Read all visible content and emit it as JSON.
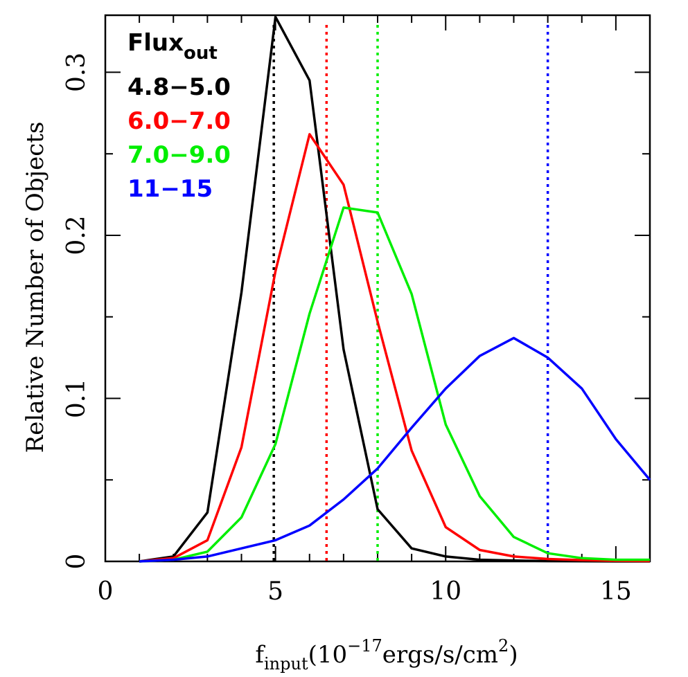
{
  "chart_data": {
    "type": "line",
    "xlabel": {
      "main": "f",
      "sub": "input",
      "paren_open": "(10",
      "sup": "−17",
      "unit": "ergs/s/cm",
      "unit_sup": "2",
      "paren_close": ")"
    },
    "ylabel": "Relative Number of Objects",
    "xlim": [
      0,
      16
    ],
    "ylim": [
      0,
      0.335
    ],
    "x_ticks_major": [
      0,
      5,
      10,
      15
    ],
    "x_tick_labels": [
      "0",
      "5",
      "10",
      "15"
    ],
    "y_ticks_major": [
      0,
      0.1,
      0.2,
      0.3
    ],
    "y_tick_labels": [
      "0",
      "0.1",
      "0.2",
      "0.3"
    ],
    "legend": {
      "title_main": "Flux",
      "title_sub": "out",
      "placement": "top-left"
    },
    "x": [
      1,
      2,
      3,
      4,
      5,
      6,
      7,
      8,
      9,
      10,
      11,
      12,
      13,
      14,
      15,
      16
    ],
    "series": [
      {
        "name": "4.8−5.0",
        "color": "#000000",
        "values": [
          0.0,
          0.003,
          0.03,
          0.165,
          0.334,
          0.295,
          0.13,
          0.032,
          0.008,
          0.003,
          0.001,
          0.0005,
          0.0002,
          0.0001,
          0.0,
          0.0
        ],
        "marker_x": 4.95
      },
      {
        "name": "6.0−7.0",
        "color": "#ff0000",
        "values": [
          0.0,
          0.002,
          0.013,
          0.07,
          0.178,
          0.262,
          0.231,
          0.147,
          0.068,
          0.021,
          0.007,
          0.003,
          0.0015,
          0.0008,
          0.0004,
          0.0002
        ],
        "marker_x": 6.5
      },
      {
        "name": "7.0−9.0",
        "color": "#00ee00",
        "values": [
          0.0,
          0.001,
          0.006,
          0.027,
          0.072,
          0.152,
          0.217,
          0.214,
          0.164,
          0.084,
          0.04,
          0.015,
          0.005,
          0.002,
          0.001,
          0.001
        ],
        "marker_x": 8.0
      },
      {
        "name": "11−15",
        "color": "#0000ff",
        "values": [
          0.0,
          0.001,
          0.003,
          0.008,
          0.013,
          0.022,
          0.038,
          0.057,
          0.082,
          0.106,
          0.126,
          0.137,
          0.125,
          0.106,
          0.075,
          0.05
        ],
        "marker_x": 13.0
      }
    ]
  }
}
